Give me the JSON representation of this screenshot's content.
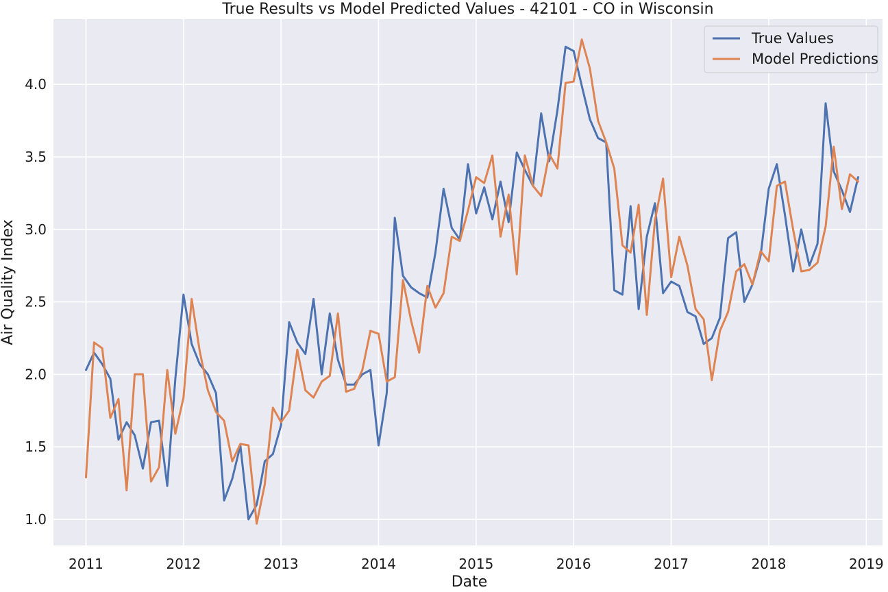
{
  "chart_data": {
    "type": "line",
    "title": "True Results vs Model Predicted Values - 42101 - CO in Wisconsin",
    "xlabel": "Date",
    "ylabel": "Air Quality Index",
    "grid": true,
    "legend_position": "top-right",
    "x_axis": {
      "type": "date",
      "range": [
        "2010-09",
        "2019-03"
      ],
      "ticks": [
        "2011",
        "2012",
        "2013",
        "2014",
        "2015",
        "2016",
        "2017",
        "2018",
        "2019"
      ]
    },
    "y_axis": {
      "range": [
        0.82,
        4.45
      ],
      "ticks": [
        1.0,
        1.5,
        2.0,
        2.5,
        3.0,
        3.5,
        4.0
      ],
      "tick_labels": [
        "1.0",
        "1.5",
        "2.0",
        "2.5",
        "3.0",
        "3.5",
        "4.0"
      ]
    },
    "x": [
      "2011-01",
      "2011-02",
      "2011-03",
      "2011-04",
      "2011-05",
      "2011-06",
      "2011-07",
      "2011-08",
      "2011-09",
      "2011-10",
      "2011-11",
      "2011-12",
      "2012-01",
      "2012-02",
      "2012-03",
      "2012-04",
      "2012-05",
      "2012-06",
      "2012-07",
      "2012-08",
      "2012-09",
      "2012-10",
      "2012-11",
      "2012-12",
      "2013-01",
      "2013-02",
      "2013-03",
      "2013-04",
      "2013-05",
      "2013-06",
      "2013-07",
      "2013-08",
      "2013-09",
      "2013-10",
      "2013-11",
      "2013-12",
      "2014-01",
      "2014-02",
      "2014-03",
      "2014-04",
      "2014-05",
      "2014-06",
      "2014-07",
      "2014-08",
      "2014-09",
      "2014-10",
      "2014-11",
      "2014-12",
      "2015-01",
      "2015-02",
      "2015-03",
      "2015-04",
      "2015-05",
      "2015-06",
      "2015-07",
      "2015-08",
      "2015-09",
      "2015-10",
      "2015-11",
      "2015-12",
      "2016-01",
      "2016-02",
      "2016-03",
      "2016-04",
      "2016-05",
      "2016-06",
      "2016-07",
      "2016-08",
      "2016-09",
      "2016-10",
      "2016-11",
      "2016-12",
      "2017-01",
      "2017-02",
      "2017-03",
      "2017-04",
      "2017-05",
      "2017-06",
      "2017-07",
      "2017-08",
      "2017-09",
      "2017-10",
      "2017-11",
      "2017-12",
      "2018-01",
      "2018-02",
      "2018-03",
      "2018-04",
      "2018-05",
      "2018-06",
      "2018-07",
      "2018-08",
      "2018-09",
      "2018-10",
      "2018-11",
      "2018-12"
    ],
    "series": [
      {
        "name": "True Values",
        "color": "#4c72b0",
        "values": [
          2.03,
          2.15,
          2.07,
          1.97,
          1.55,
          1.67,
          1.58,
          1.35,
          1.67,
          1.68,
          1.23,
          1.97,
          2.55,
          2.21,
          2.07,
          2.0,
          1.87,
          1.13,
          1.28,
          1.51,
          1.0,
          1.1,
          1.4,
          1.45,
          1.65,
          2.36,
          2.22,
          2.14,
          2.52,
          2.0,
          2.42,
          2.1,
          1.93,
          1.93,
          2.0,
          2.03,
          1.51,
          1.87,
          3.08,
          2.68,
          2.6,
          2.56,
          2.53,
          2.84,
          3.28,
          3.01,
          2.93,
          3.45,
          3.11,
          3.29,
          3.07,
          3.33,
          3.05,
          3.53,
          3.41,
          3.3,
          3.8,
          3.47,
          3.82,
          4.26,
          4.23,
          3.99,
          3.76,
          3.63,
          3.6,
          2.58,
          2.55,
          3.16,
          2.45,
          2.95,
          3.18,
          2.56,
          2.64,
          2.61,
          2.43,
          2.4,
          2.21,
          2.25,
          2.39,
          2.94,
          2.98,
          2.5,
          2.62,
          2.82,
          3.28,
          3.45,
          3.1,
          2.71,
          3.0,
          2.75,
          2.9,
          3.87,
          3.4,
          3.27,
          3.12,
          3.36
        ]
      },
      {
        "name": "Model Predictions",
        "color": "#dd8452",
        "values": [
          1.29,
          2.22,
          2.18,
          1.7,
          1.83,
          1.2,
          2.0,
          2.0,
          1.26,
          1.36,
          2.03,
          1.59,
          1.84,
          2.52,
          2.16,
          1.89,
          1.74,
          1.68,
          1.4,
          1.52,
          1.51,
          0.97,
          1.24,
          1.77,
          1.67,
          1.75,
          2.17,
          1.89,
          1.84,
          1.95,
          1.99,
          2.42,
          1.88,
          1.9,
          2.03,
          2.3,
          2.28,
          1.95,
          1.98,
          2.65,
          2.37,
          2.15,
          2.61,
          2.46,
          2.56,
          2.95,
          2.92,
          3.13,
          3.36,
          3.32,
          3.51,
          2.95,
          3.24,
          2.69,
          3.51,
          3.3,
          3.23,
          3.52,
          3.42,
          4.01,
          4.02,
          4.31,
          4.11,
          3.75,
          3.6,
          3.42,
          2.89,
          2.84,
          3.17,
          2.41,
          3.06,
          3.35,
          2.67,
          2.95,
          2.75,
          2.45,
          2.38,
          1.96,
          2.3,
          2.43,
          2.71,
          2.76,
          2.62,
          2.85,
          2.78,
          3.3,
          3.33,
          3.0,
          2.71,
          2.72,
          2.77,
          3.02,
          3.57,
          3.14,
          3.38,
          3.33
        ]
      }
    ]
  }
}
